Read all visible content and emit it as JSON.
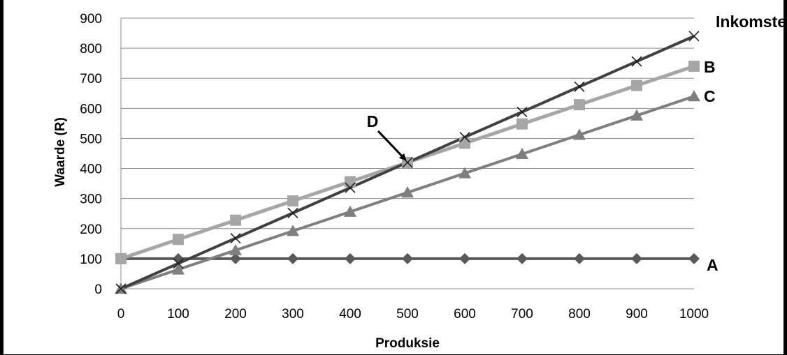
{
  "chart_data": {
    "type": "line",
    "title": "",
    "xlabel": "Produksie",
    "ylabel": "Waarde (R)",
    "x": [
      0,
      100,
      200,
      300,
      400,
      500,
      600,
      700,
      800,
      900,
      1000
    ],
    "xlim": [
      0,
      1000
    ],
    "ylim": [
      0,
      900
    ],
    "x_ticks": [
      "0",
      "100",
      "200",
      "300",
      "400",
      "500",
      "600",
      "700",
      "800",
      "900",
      "1000"
    ],
    "y_ticks": [
      "0",
      "100",
      "200",
      "300",
      "400",
      "500",
      "600",
      "700",
      "800",
      "900"
    ],
    "grid": "horizontal",
    "series": [
      {
        "name": "A",
        "values": [
          100,
          100,
          100,
          100,
          100,
          100,
          100,
          100,
          100,
          100,
          100
        ],
        "color": "#595959",
        "marker": "diamond"
      },
      {
        "name": "B",
        "values": [
          100,
          164,
          228,
          292,
          356,
          420,
          484,
          548,
          612,
          676,
          740
        ],
        "color": "#a6a6a6",
        "marker": "square"
      },
      {
        "name": "C",
        "values": [
          0,
          64,
          128,
          192,
          256,
          320,
          384,
          448,
          512,
          576,
          640
        ],
        "color": "#7f7f7f",
        "marker": "triangle"
      },
      {
        "name": "Inkomste",
        "values": [
          0,
          84,
          168,
          252,
          336,
          420,
          504,
          588,
          672,
          756,
          840
        ],
        "color": "#404040",
        "marker": "x"
      }
    ],
    "annotations": [
      {
        "text": "D",
        "x": 500,
        "y": 420
      }
    ]
  }
}
